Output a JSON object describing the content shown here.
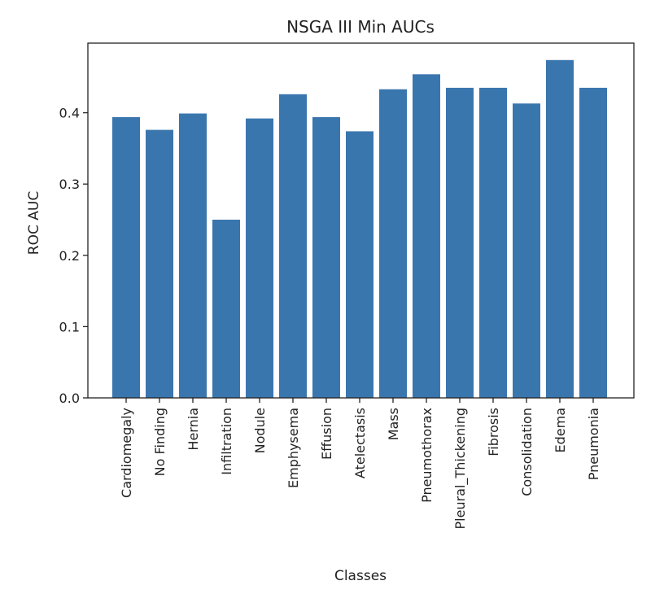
{
  "chart_data": {
    "type": "bar",
    "title": "NSGA III Min AUCs",
    "xlabel": "Classes",
    "ylabel": "ROC AUC",
    "categories": [
      "Cardiomegaly",
      "No Finding",
      "Hernia",
      "Infiltration",
      "Nodule",
      "Emphysema",
      "Effusion",
      "Atelectasis",
      "Mass",
      "Pneumothorax",
      "Pleural_Thickening",
      "Fibrosis",
      "Consolidation",
      "Edema",
      "Pneumonia"
    ],
    "values": [
      0.394,
      0.376,
      0.399,
      0.25,
      0.392,
      0.426,
      0.394,
      0.374,
      0.433,
      0.454,
      0.435,
      0.435,
      0.413,
      0.474,
      0.435
    ],
    "yticks": [
      "0.0",
      "0.1",
      "0.2",
      "0.3",
      "0.4"
    ],
    "ylim": [
      0.0,
      0.5
    ],
    "grid": false,
    "bar_color": "#3a76ae"
  }
}
